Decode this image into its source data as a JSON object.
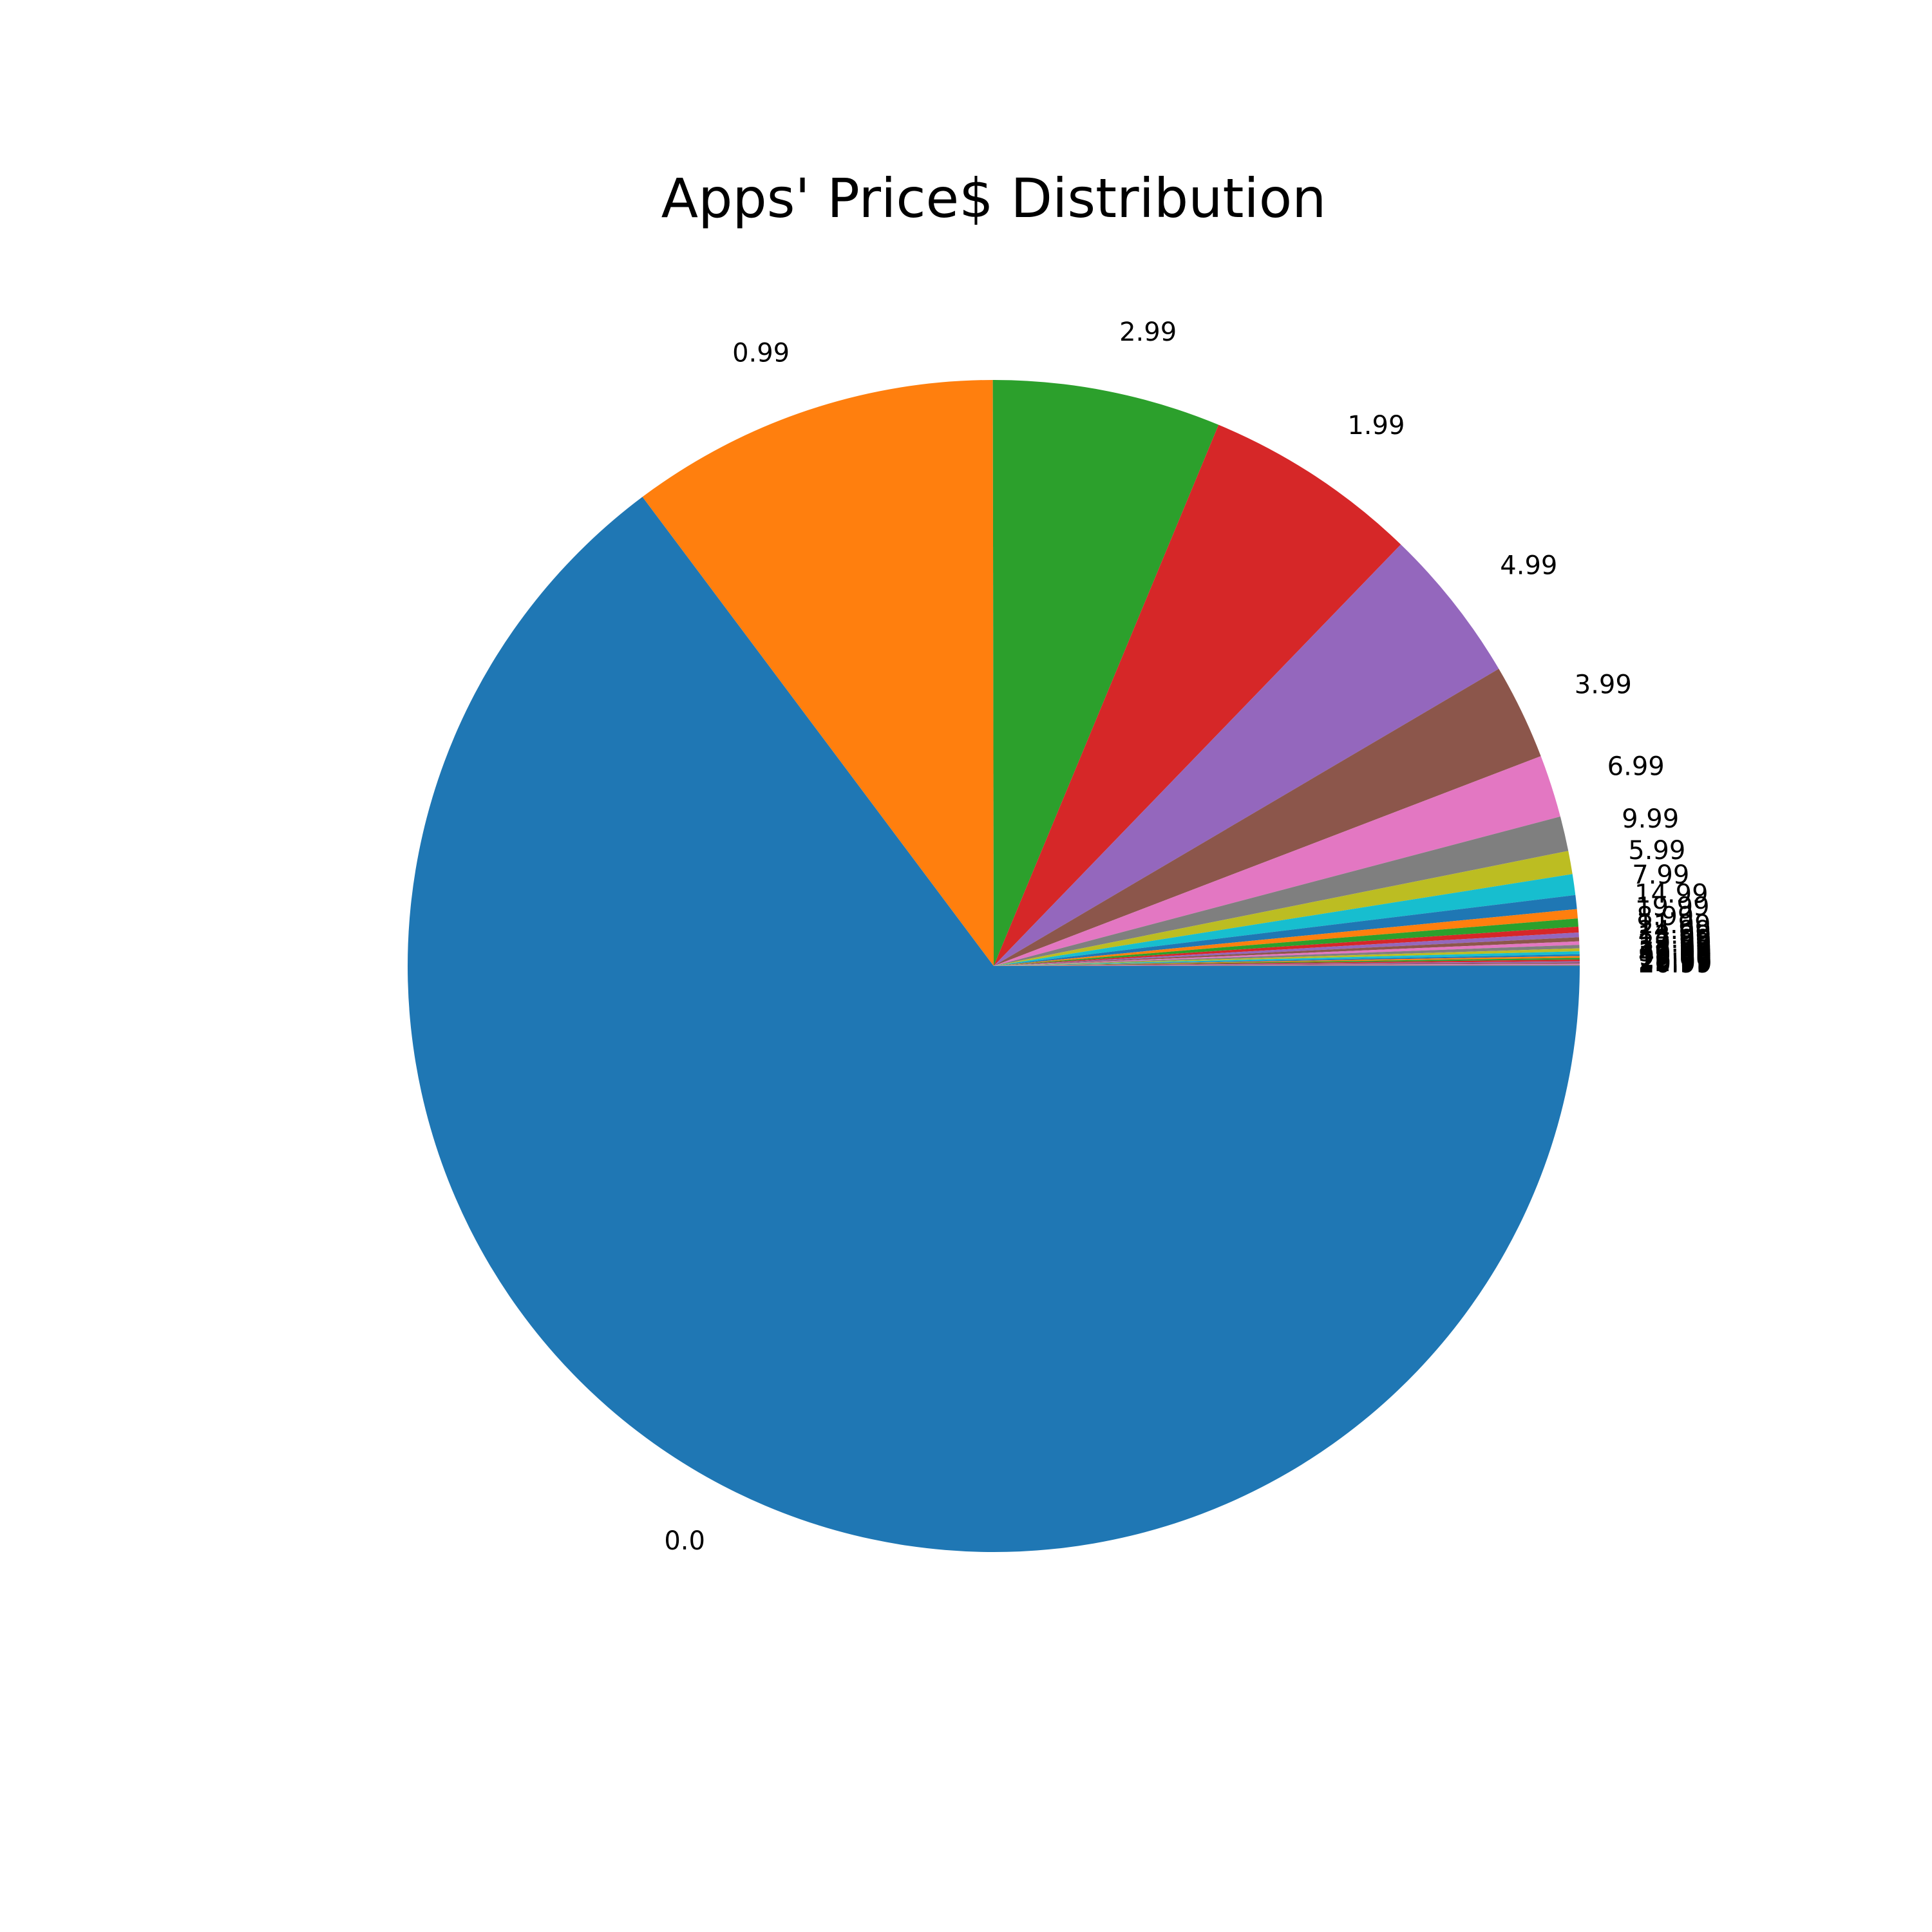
{
  "chart_data": {
    "type": "pie",
    "title": "Apps' Price$ Distribution",
    "categories": [
      "0.0",
      "0.99",
      "2.99",
      "1.99",
      "4.99",
      "3.99",
      "6.99",
      "9.99",
      "5.99",
      "7.99",
      "14.99",
      "19.99",
      "8.99",
      "11.99",
      "24.99",
      "13.99",
      "12.99",
      "29.99",
      "17.99",
      "15.99",
      "39.99",
      "49.99",
      "99.99",
      "16.99",
      "18.99",
      "23.99",
      "22.99",
      "20.99"
    ],
    "values": [
      4056,
      639,
      394,
      373,
      270,
      165,
      108,
      60,
      40,
      36,
      24,
      16,
      14,
      10,
      8,
      7,
      6,
      6,
      5,
      5,
      3,
      3,
      3,
      3,
      2,
      2,
      2,
      2
    ],
    "colors": [
      "#1f77b4",
      "#ff7f0e",
      "#2ca02c",
      "#d62728",
      "#9467bd",
      "#8c564b",
      "#e377c2",
      "#7f7f7f",
      "#bcbd22",
      "#17becf"
    ],
    "start_angle": 0,
    "direction": "clockwise"
  }
}
